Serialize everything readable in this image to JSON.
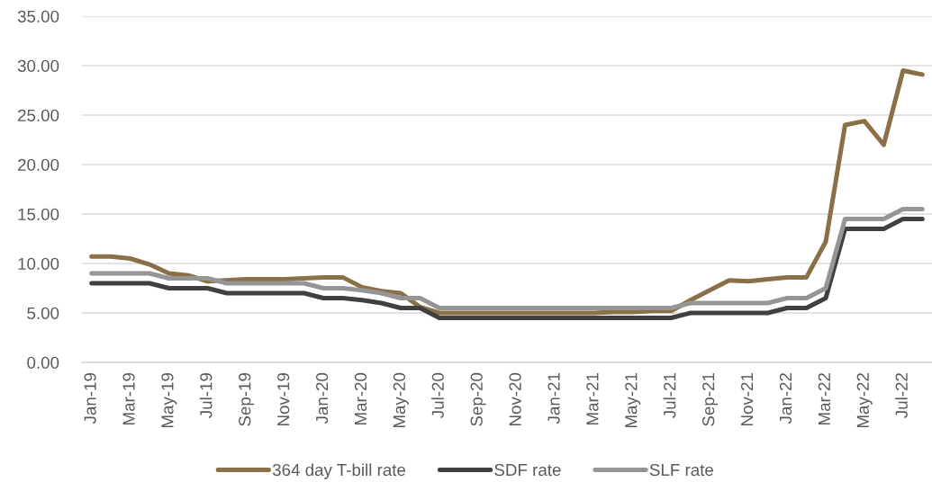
{
  "chart_data": {
    "type": "line",
    "categories": [
      "Jan-19",
      null,
      "Mar-19",
      null,
      "May-19",
      null,
      "Jul-19",
      null,
      "Sep-19",
      null,
      "Nov-19",
      null,
      "Jan-20",
      null,
      "Mar-20",
      null,
      "May-20",
      null,
      "Jul-20",
      null,
      "Sep-20",
      null,
      "Nov-20",
      null,
      "Jan-21",
      null,
      "Mar-21",
      null,
      "May-21",
      null,
      "Jul-21",
      null,
      "Sep-21",
      null,
      "Nov-21",
      null,
      "Jan-22",
      null,
      "Mar-22",
      null,
      "May-22",
      null,
      "Jul-22",
      null
    ],
    "series": [
      {
        "name": "364 day T-bill rate",
        "color": "#8b6f47",
        "values": [
          10.7,
          10.7,
          10.5,
          9.9,
          9.0,
          8.8,
          8.2,
          8.3,
          8.4,
          8.4,
          8.4,
          8.5,
          8.6,
          8.6,
          7.6,
          7.2,
          7.0,
          5.6,
          5.0,
          5.0,
          5.0,
          5.0,
          5.0,
          5.0,
          5.0,
          5.0,
          5.0,
          5.1,
          5.1,
          5.2,
          5.2,
          6.3,
          7.3,
          8.3,
          8.2,
          8.4,
          8.6,
          8.6,
          12.2,
          24.0,
          24.4,
          22.0,
          29.5,
          29.1
        ]
      },
      {
        "name": "SDF rate",
        "color": "#404040",
        "values": [
          8.0,
          8.0,
          8.0,
          8.0,
          7.5,
          7.5,
          7.5,
          7.0,
          7.0,
          7.0,
          7.0,
          7.0,
          6.5,
          6.5,
          6.3,
          6.0,
          5.5,
          5.5,
          4.5,
          4.5,
          4.5,
          4.5,
          4.5,
          4.5,
          4.5,
          4.5,
          4.5,
          4.5,
          4.5,
          4.5,
          4.5,
          5.0,
          5.0,
          5.0,
          5.0,
          5.0,
          5.5,
          5.5,
          6.5,
          13.5,
          13.5,
          13.5,
          14.5,
          14.5
        ]
      },
      {
        "name": "SLF rate",
        "color": "#959595",
        "values": [
          9.0,
          9.0,
          9.0,
          9.0,
          8.5,
          8.5,
          8.5,
          8.0,
          8.0,
          8.0,
          8.0,
          8.0,
          7.5,
          7.5,
          7.3,
          7.0,
          6.5,
          6.5,
          5.5,
          5.5,
          5.5,
          5.5,
          5.5,
          5.5,
          5.5,
          5.5,
          5.5,
          5.5,
          5.5,
          5.5,
          5.5,
          6.0,
          6.0,
          6.0,
          6.0,
          6.0,
          6.5,
          6.5,
          7.5,
          14.5,
          14.5,
          14.5,
          15.5,
          15.5
        ]
      }
    ],
    "ylim": [
      0,
      35
    ],
    "yticks": [
      {
        "value": 0,
        "label": "0.00"
      },
      {
        "value": 5,
        "label": "5.00"
      },
      {
        "value": 10,
        "label": "10.00"
      },
      {
        "value": 15,
        "label": "15.00"
      },
      {
        "value": 20,
        "label": "20.00"
      },
      {
        "value": 25,
        "label": "25.00"
      },
      {
        "value": 30,
        "label": "30.00"
      },
      {
        "value": 35,
        "label": "35.00"
      }
    ],
    "grid": "y",
    "legend": "bottom",
    "line_style": "solid"
  }
}
